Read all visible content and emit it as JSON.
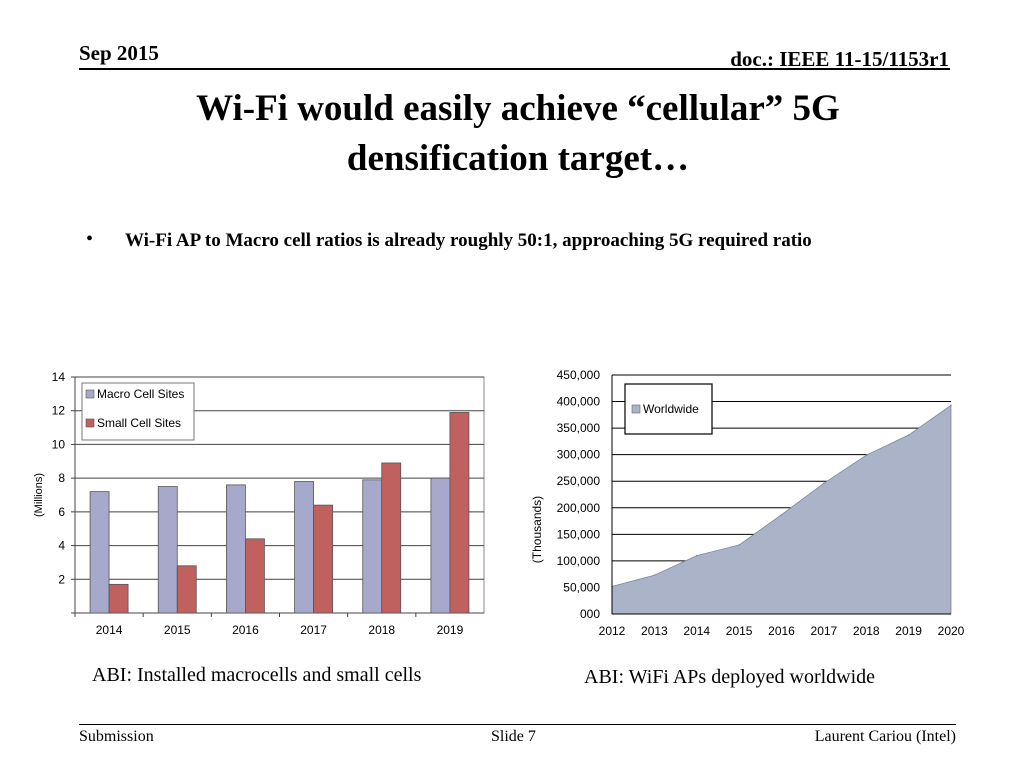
{
  "header": {
    "date": "Sep 2015",
    "doc": "doc.: IEEE 11-15/1153r1"
  },
  "title": "Wi-Fi would easily achieve “cellular” 5G densification target…",
  "bullet": {
    "symbol": "•",
    "text": "Wi-Fi AP to Macro cell ratios is already roughly 50:1, approaching 5G required ratio"
  },
  "captions": {
    "left": "ABI: Installed macrocells and small cells",
    "right": "ABI: WiFi APs deployed worldwide"
  },
  "footer": {
    "left": "Submission",
    "center": "Slide 7",
    "right": "Laurent Cariou (Intel)"
  },
  "colors": {
    "macro": "#a6a9cc",
    "small": "#c0605f",
    "area": "#aab3c8"
  },
  "chart_data": [
    {
      "type": "bar",
      "title": "",
      "xlabel": "",
      "ylabel": "(Millions)",
      "categories": [
        "2014",
        "2015",
        "2016",
        "2017",
        "2018",
        "2019"
      ],
      "series": [
        {
          "name": "Macro Cell Sites",
          "values": [
            7.2,
            7.5,
            7.6,
            7.8,
            7.9,
            8.0
          ]
        },
        {
          "name": "Small Cell Sites",
          "values": [
            1.7,
            2.8,
            4.4,
            6.4,
            8.9,
            11.9
          ]
        }
      ],
      "ylim": [
        0,
        14
      ],
      "yticks": [
        "2",
        "4",
        "6",
        "8",
        "10",
        "12",
        "14"
      ],
      "legend": "top-left",
      "grid": true
    },
    {
      "type": "area",
      "title": "",
      "xlabel": "",
      "ylabel": "(Thousands)",
      "x": [
        "2012",
        "2013",
        "2014",
        "2015",
        "2016",
        "2017",
        "2018",
        "2019",
        "2020"
      ],
      "series": [
        {
          "name": "Worldwide",
          "values": [
            52000,
            73000,
            110000,
            130000,
            187000,
            246000,
            299000,
            337000,
            393000
          ]
        }
      ],
      "ylim": [
        0,
        450000
      ],
      "yticks": [
        "000",
        "50,000",
        "100,000",
        "150,000",
        "200,000",
        "250,000",
        "300,000",
        "350,000",
        "400,000",
        "450,000"
      ],
      "legend": "top-left",
      "grid": true
    }
  ]
}
